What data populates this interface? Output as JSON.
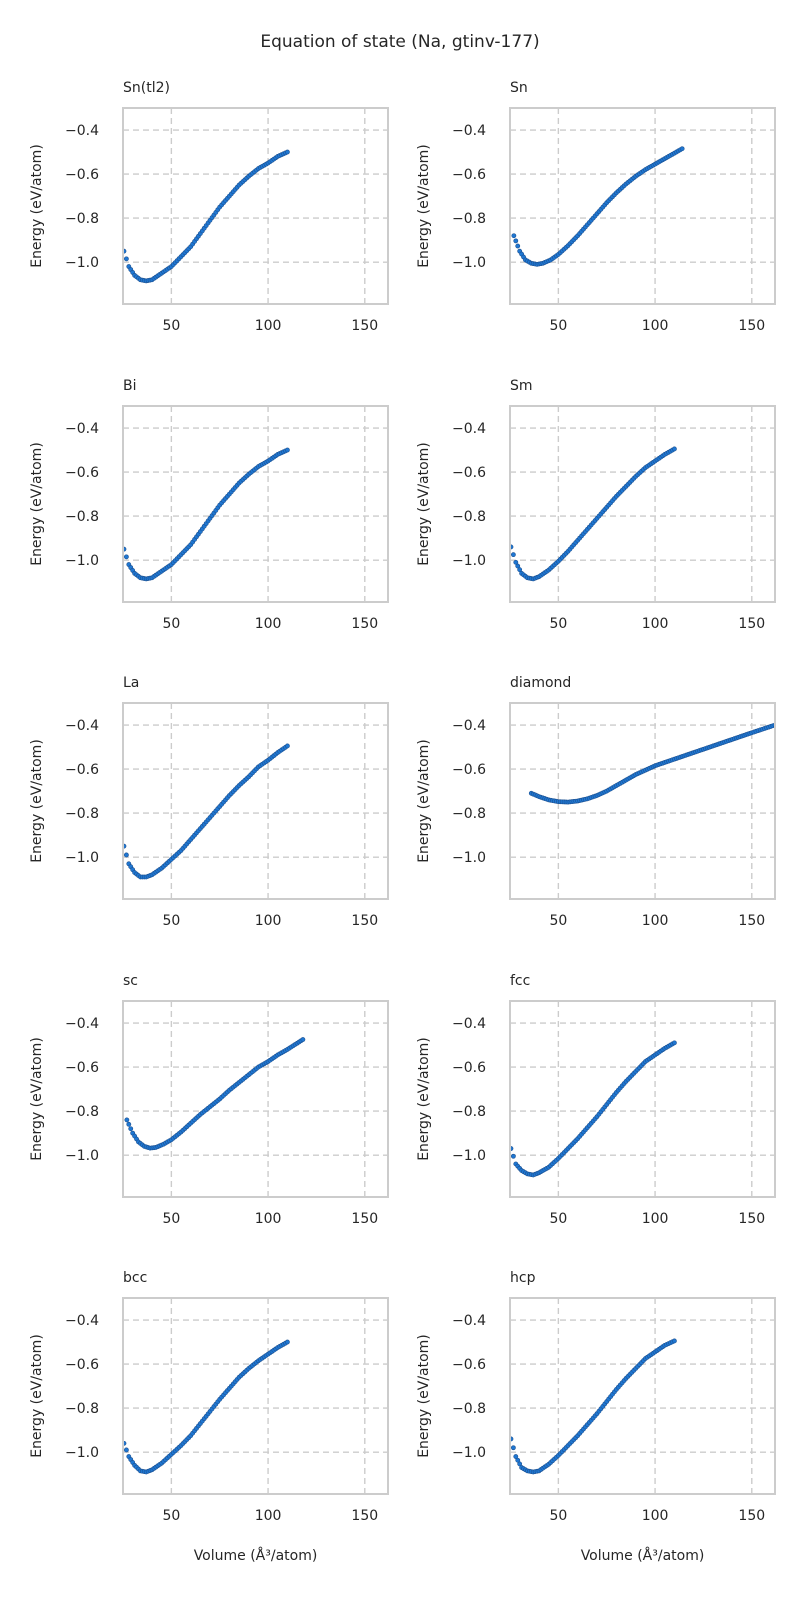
{
  "suptitle": "Equation of state (Na, gtinv-177)",
  "style": {
    "marker_color": "#1f77d2",
    "marker_edge": "#1b4f8f",
    "grid_color": "#cccccc",
    "frame_color": "#cccccc"
  },
  "axes_common": {
    "xlabel": "Volume (Å³/atom)",
    "ylabel": "Energy (eV/atom)",
    "xlim": [
      25,
      162
    ],
    "ylim": [
      -1.19,
      -0.3
    ],
    "xticks": [
      50,
      100,
      150
    ],
    "xtick_labels": [
      "50",
      "100",
      "150"
    ],
    "yticks": [
      -0.4,
      -0.6,
      -0.8,
      -1.0
    ],
    "ytick_labels": [
      "−0.4",
      "−0.6",
      "−0.8",
      "−1.0"
    ],
    "grid": true,
    "grid_style": "dashed"
  },
  "chart_data": [
    {
      "type": "scatter",
      "title": "Sn(tl2)",
      "curve": [
        [
          25.5,
          -0.95
        ],
        [
          28,
          -1.02
        ],
        [
          31,
          -1.06
        ],
        [
          34,
          -1.08
        ],
        [
          37,
          -1.085
        ],
        [
          40,
          -1.08
        ],
        [
          45,
          -1.05
        ],
        [
          50,
          -1.02
        ],
        [
          55,
          -0.975
        ],
        [
          60,
          -0.93
        ],
        [
          65,
          -0.87
        ],
        [
          70,
          -0.81
        ],
        [
          75,
          -0.75
        ],
        [
          80,
          -0.7
        ],
        [
          85,
          -0.65
        ],
        [
          90,
          -0.61
        ],
        [
          95,
          -0.575
        ],
        [
          100,
          -0.55
        ],
        [
          105,
          -0.52
        ],
        [
          110,
          -0.5
        ]
      ]
    },
    {
      "type": "scatter",
      "title": "Sn",
      "curve": [
        [
          27,
          -0.88
        ],
        [
          30,
          -0.95
        ],
        [
          33,
          -0.99
        ],
        [
          36,
          -1.005
        ],
        [
          39,
          -1.01
        ],
        [
          42,
          -1.005
        ],
        [
          46,
          -0.99
        ],
        [
          50,
          -0.965
        ],
        [
          55,
          -0.925
        ],
        [
          60,
          -0.88
        ],
        [
          65,
          -0.83
        ],
        [
          70,
          -0.78
        ],
        [
          75,
          -0.73
        ],
        [
          80,
          -0.685
        ],
        [
          85,
          -0.645
        ],
        [
          90,
          -0.61
        ],
        [
          95,
          -0.58
        ],
        [
          100,
          -0.555
        ],
        [
          105,
          -0.53
        ],
        [
          110,
          -0.505
        ],
        [
          114,
          -0.485
        ]
      ]
    },
    {
      "type": "scatter",
      "title": "Bi",
      "curve": [
        [
          25.5,
          -0.95
        ],
        [
          28,
          -1.02
        ],
        [
          31,
          -1.06
        ],
        [
          34,
          -1.08
        ],
        [
          37,
          -1.085
        ],
        [
          40,
          -1.08
        ],
        [
          45,
          -1.05
        ],
        [
          50,
          -1.02
        ],
        [
          55,
          -0.975
        ],
        [
          60,
          -0.93
        ],
        [
          65,
          -0.87
        ],
        [
          70,
          -0.81
        ],
        [
          75,
          -0.75
        ],
        [
          80,
          -0.7
        ],
        [
          85,
          -0.65
        ],
        [
          90,
          -0.61
        ],
        [
          95,
          -0.575
        ],
        [
          100,
          -0.55
        ],
        [
          105,
          -0.52
        ],
        [
          110,
          -0.5
        ]
      ]
    },
    {
      "type": "scatter",
      "title": "Sm",
      "curve": [
        [
          25.5,
          -0.94
        ],
        [
          28,
          -1.01
        ],
        [
          31,
          -1.06
        ],
        [
          34,
          -1.08
        ],
        [
          37,
          -1.085
        ],
        [
          40,
          -1.075
        ],
        [
          45,
          -1.045
        ],
        [
          50,
          -1.005
        ],
        [
          55,
          -0.96
        ],
        [
          60,
          -0.91
        ],
        [
          65,
          -0.86
        ],
        [
          70,
          -0.81
        ],
        [
          75,
          -0.76
        ],
        [
          80,
          -0.71
        ],
        [
          85,
          -0.665
        ],
        [
          90,
          -0.62
        ],
        [
          95,
          -0.58
        ],
        [
          100,
          -0.55
        ],
        [
          105,
          -0.52
        ],
        [
          110,
          -0.495
        ]
      ]
    },
    {
      "type": "scatter",
      "title": "La",
      "curve": [
        [
          25.5,
          -0.95
        ],
        [
          28,
          -1.03
        ],
        [
          31,
          -1.07
        ],
        [
          34,
          -1.09
        ],
        [
          37,
          -1.09
        ],
        [
          40,
          -1.08
        ],
        [
          45,
          -1.05
        ],
        [
          50,
          -1.01
        ],
        [
          55,
          -0.97
        ],
        [
          60,
          -0.92
        ],
        [
          65,
          -0.87
        ],
        [
          70,
          -0.82
        ],
        [
          75,
          -0.77
        ],
        [
          80,
          -0.72
        ],
        [
          85,
          -0.675
        ],
        [
          90,
          -0.635
        ],
        [
          95,
          -0.59
        ],
        [
          100,
          -0.56
        ],
        [
          105,
          -0.525
        ],
        [
          110,
          -0.495
        ]
      ]
    },
    {
      "type": "scatter",
      "title": "diamond",
      "curve": [
        [
          36,
          -0.71
        ],
        [
          40,
          -0.725
        ],
        [
          45,
          -0.74
        ],
        [
          50,
          -0.748
        ],
        [
          55,
          -0.75
        ],
        [
          60,
          -0.745
        ],
        [
          65,
          -0.735
        ],
        [
          70,
          -0.72
        ],
        [
          75,
          -0.7
        ],
        [
          80,
          -0.675
        ],
        [
          85,
          -0.65
        ],
        [
          90,
          -0.625
        ],
        [
          95,
          -0.605
        ],
        [
          100,
          -0.585
        ],
        [
          110,
          -0.555
        ],
        [
          120,
          -0.525
        ],
        [
          130,
          -0.495
        ],
        [
          140,
          -0.465
        ],
        [
          150,
          -0.435
        ],
        [
          162,
          -0.4
        ]
      ]
    },
    {
      "type": "scatter",
      "title": "sc",
      "curve": [
        [
          27,
          -0.84
        ],
        [
          30,
          -0.9
        ],
        [
          33,
          -0.94
        ],
        [
          36,
          -0.96
        ],
        [
          39,
          -0.968
        ],
        [
          42,
          -0.965
        ],
        [
          46,
          -0.95
        ],
        [
          50,
          -0.93
        ],
        [
          55,
          -0.895
        ],
        [
          60,
          -0.855
        ],
        [
          65,
          -0.815
        ],
        [
          70,
          -0.78
        ],
        [
          75,
          -0.745
        ],
        [
          80,
          -0.705
        ],
        [
          85,
          -0.67
        ],
        [
          90,
          -0.635
        ],
        [
          95,
          -0.6
        ],
        [
          100,
          -0.575
        ],
        [
          105,
          -0.545
        ],
        [
          110,
          -0.52
        ],
        [
          118,
          -0.475
        ]
      ]
    },
    {
      "type": "scatter",
      "title": "fcc",
      "curve": [
        [
          25.5,
          -0.97
        ],
        [
          28,
          -1.04
        ],
        [
          31,
          -1.07
        ],
        [
          34,
          -1.085
        ],
        [
          37,
          -1.09
        ],
        [
          40,
          -1.08
        ],
        [
          45,
          -1.055
        ],
        [
          50,
          -1.015
        ],
        [
          55,
          -0.97
        ],
        [
          60,
          -0.925
        ],
        [
          65,
          -0.875
        ],
        [
          70,
          -0.825
        ],
        [
          75,
          -0.77
        ],
        [
          80,
          -0.715
        ],
        [
          85,
          -0.665
        ],
        [
          90,
          -0.62
        ],
        [
          95,
          -0.575
        ],
        [
          100,
          -0.545
        ],
        [
          105,
          -0.515
        ],
        [
          110,
          -0.49
        ]
      ]
    },
    {
      "type": "scatter",
      "title": "bcc",
      "curve": [
        [
          25.5,
          -0.96
        ],
        [
          28,
          -1.02
        ],
        [
          31,
          -1.06
        ],
        [
          34,
          -1.085
        ],
        [
          37,
          -1.09
        ],
        [
          40,
          -1.08
        ],
        [
          45,
          -1.05
        ],
        [
          50,
          -1.01
        ],
        [
          55,
          -0.97
        ],
        [
          60,
          -0.925
        ],
        [
          65,
          -0.87
        ],
        [
          70,
          -0.815
        ],
        [
          75,
          -0.76
        ],
        [
          80,
          -0.71
        ],
        [
          85,
          -0.66
        ],
        [
          90,
          -0.62
        ],
        [
          95,
          -0.585
        ],
        [
          100,
          -0.555
        ],
        [
          105,
          -0.525
        ],
        [
          110,
          -0.5
        ]
      ]
    },
    {
      "type": "scatter",
      "title": "hcp",
      "curve": [
        [
          25.5,
          -0.94
        ],
        [
          28,
          -1.02
        ],
        [
          31,
          -1.07
        ],
        [
          34,
          -1.085
        ],
        [
          37,
          -1.09
        ],
        [
          40,
          -1.085
        ],
        [
          45,
          -1.055
        ],
        [
          50,
          -1.015
        ],
        [
          55,
          -0.97
        ],
        [
          60,
          -0.925
        ],
        [
          65,
          -0.875
        ],
        [
          70,
          -0.825
        ],
        [
          75,
          -0.77
        ],
        [
          80,
          -0.715
        ],
        [
          85,
          -0.665
        ],
        [
          90,
          -0.62
        ],
        [
          95,
          -0.575
        ],
        [
          100,
          -0.545
        ],
        [
          105,
          -0.515
        ],
        [
          110,
          -0.495
        ]
      ]
    }
  ]
}
